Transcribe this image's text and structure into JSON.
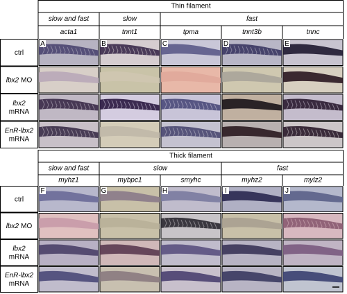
{
  "row_labels": [
    {
      "lines": [
        [
          {
            "text": "ctrl",
            "italic": false
          }
        ]
      ]
    },
    {
      "lines": [
        [
          {
            "text": "lbx2",
            "italic": true
          },
          {
            "text": "MO",
            "italic": false
          }
        ]
      ]
    },
    {
      "lines": [
        [
          {
            "text": "lbx2",
            "italic": true
          }
        ],
        [
          {
            "text": "mRNA",
            "italic": false
          }
        ]
      ]
    },
    {
      "lines": [
        [
          {
            "text": "EnR-lbx2",
            "italic": true
          }
        ],
        [
          {
            "text": "mRNA",
            "italic": false
          }
        ]
      ]
    }
  ],
  "panels": [
    {
      "title": "Thin filament",
      "groups": [
        {
          "label": "slow and fast",
          "genes": [
            {
              "name": "acta1",
              "letter": "A"
            }
          ]
        },
        {
          "label": "slow",
          "genes": [
            {
              "name": "tnnt1",
              "letter": "B"
            }
          ]
        },
        {
          "label": "fast",
          "genes": [
            {
              "name": "tpma",
              "letter": "C"
            },
            {
              "name": "tnnt3b",
              "letter": "D"
            },
            {
              "name": "tnnc",
              "letter": "E"
            }
          ]
        }
      ]
    },
    {
      "title": "Thick filament",
      "groups": [
        {
          "label": "slow and fast",
          "genes": [
            {
              "name": "myhz1",
              "letter": "F"
            }
          ]
        },
        {
          "label": "slow",
          "genes": [
            {
              "name": "mybpc1",
              "letter": "G"
            },
            {
              "name": "smyhc",
              "letter": "H"
            }
          ]
        },
        {
          "label": "fast",
          "genes": [
            {
              "name": "myhz2",
              "letter": "I"
            },
            {
              "name": "mylz2",
              "letter": "J"
            }
          ]
        }
      ]
    }
  ]
}
